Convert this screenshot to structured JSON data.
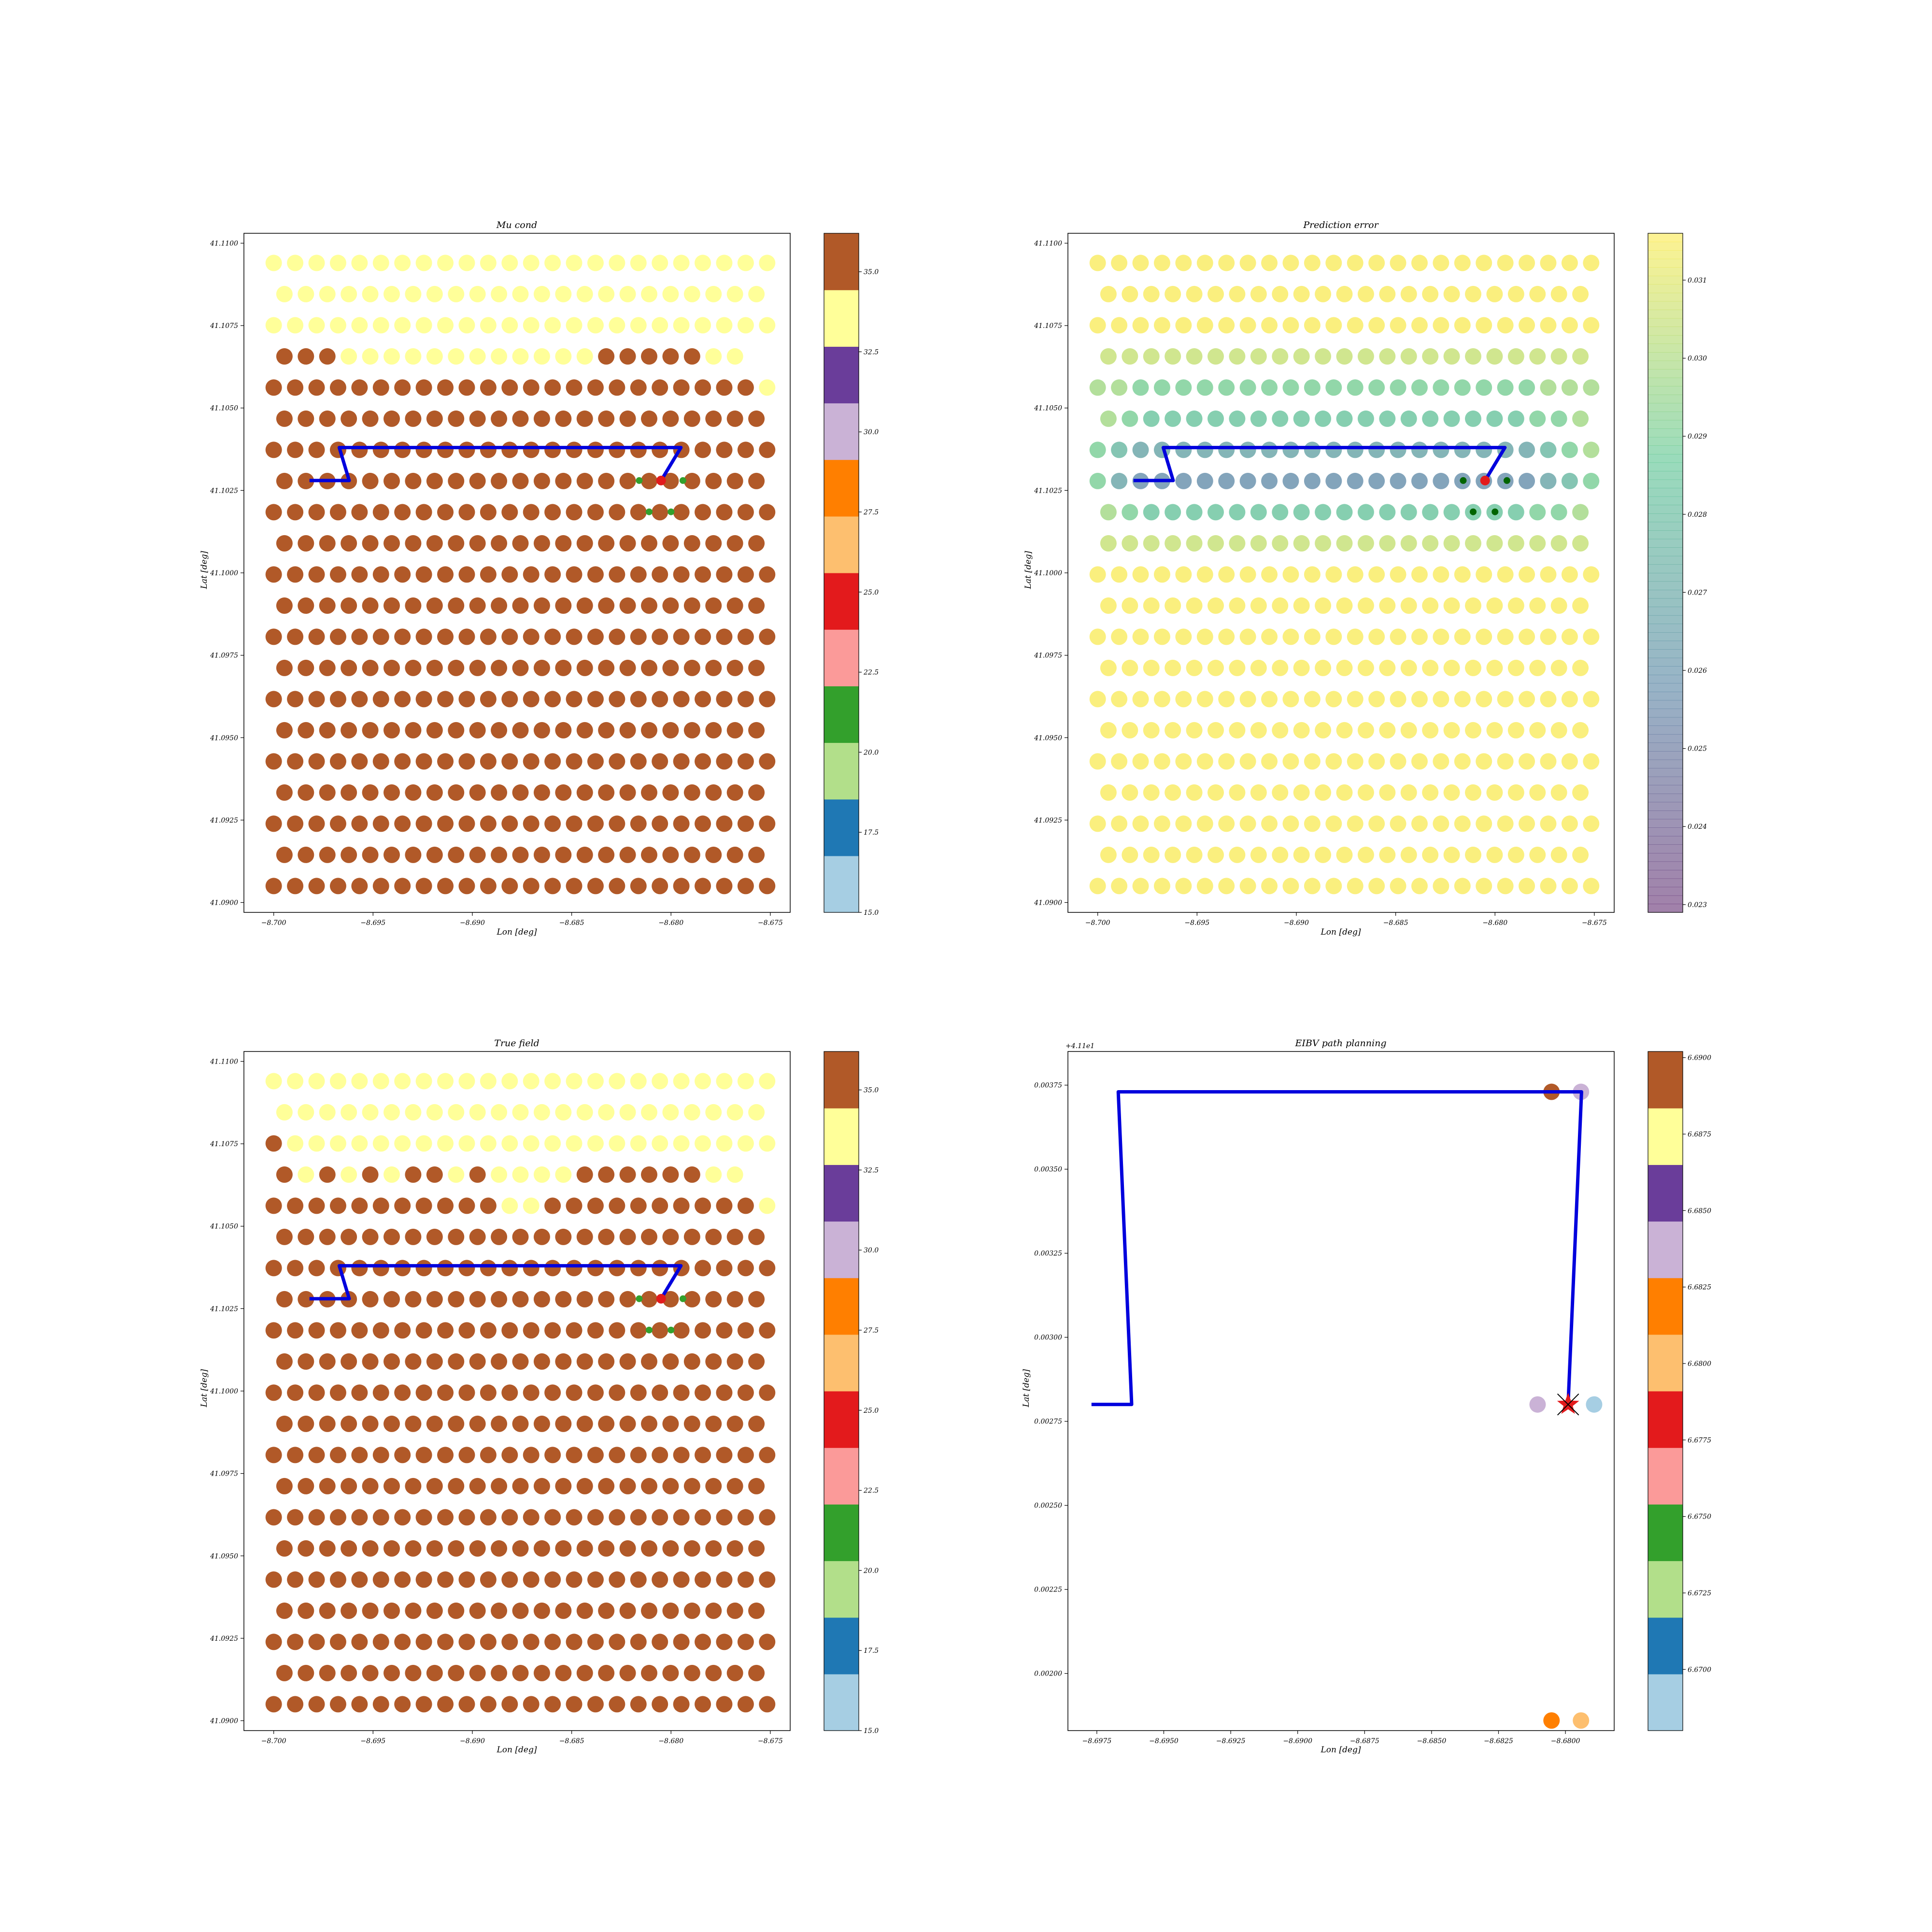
{
  "chart_data": [
    {
      "type": "scatter",
      "title": "Mu cond",
      "xlabel": "Lon [deg]",
      "ylabel": "Lat [deg]",
      "xlim": [
        -8.7015,
        -8.674
      ],
      "ylim": [
        41.0897,
        41.1103
      ],
      "x_ticks": [
        "−8.700",
        "−8.695",
        "−8.690",
        "−8.685",
        "−8.680",
        "−8.675"
      ],
      "y_ticks": [
        "41.0900",
        "41.0925",
        "41.0950",
        "41.0975",
        "41.1000",
        "41.1025",
        "41.1050",
        "41.1075",
        "41.1100"
      ],
      "grid": false,
      "field": {
        "lon_start": -8.7,
        "lon_step": 0.00108,
        "lat_start": 41.1094,
        "lat_step": -0.000945,
        "rows": 21,
        "cols": 24,
        "value_rows": [
          "HHHHHHHHHHHHHHHHHHHHHHHH",
          "HHHHHHHHHHHHHHHHHHHHHHH",
          "HHHHHHHHHHHHHHHHHHHHHHHH",
          "LLLHHHHHHHHHHHHLLLLLHH",
          "LLLLLLLLLLLLLLLLLLLLLLLH",
          "LLLLLLLLLLLLLLLLLLLLLLL",
          "LLLLLLLLLLLLLLLLLLLLLLLL",
          "LLLLLLLLLLLLLLLLLLLLLLL",
          "LLLLLLLLLLLLLLLLLLLLLLLL",
          "LLLLLLLLLLLLLLLLLLLLLLL",
          "LLLLLLLLLLLLLLLLLLLLLLLL",
          "LLLLLLLLLLLLLLLLLLLLLLL",
          "LLLLLLLLLLLLLLLLLLLLLLLL",
          "LLLLLLLLLLLLLLLLLLLLLLL",
          "LLLLLLLLLLLLLLLLLLLLLLLL",
          "LLLLLLLLLLLLLLLLLLLLLLL",
          "LLLLLLLLLLLLLLLLLLLLLLLL",
          "LLLLLLLLLLLLLLLLLLLLLLL",
          "LLLLLLLLLLLLLLLLLLLLLLLL",
          "LLLLLLLLLLLLLLLLLLLLLLL",
          "LLLLLLLLLLLLLLLLLLLLLLLL"
        ],
        "value_map": {
          "H": 34.0,
          "L": 36.0
        }
      },
      "path": [
        [
          -8.6982,
          41.1028
        ],
        [
          -8.6962,
          41.1028
        ],
        [
          -8.6967,
          41.1038
        ],
        [
          -8.6795,
          41.1038
        ],
        [
          -8.6805,
          41.1028
        ]
      ],
      "path_color": "#0000dd",
      "markers": [
        {
          "lon": -8.6805,
          "lat": 41.1028,
          "color": "#e31a1c",
          "size": "large"
        },
        {
          "lon": -8.6816,
          "lat": 41.1028,
          "color": "#33a02c",
          "size": "small"
        },
        {
          "lon": -8.6794,
          "lat": 41.1028,
          "color": "#33a02c",
          "size": "small"
        },
        {
          "lon": -8.6811,
          "lat": 41.10185,
          "color": "#33a02c",
          "size": "small"
        },
        {
          "lon": -8.68,
          "lat": 41.10185,
          "color": "#33a02c",
          "size": "small"
        }
      ],
      "colorbar": {
        "ticks": [
          "15.0",
          "17.5",
          "20.0",
          "22.5",
          "25.0",
          "27.5",
          "30.0",
          "32.5",
          "35.0"
        ],
        "range": [
          15.0,
          36.2
        ],
        "colors": [
          "#a6cee3",
          "#1f78b4",
          "#b2df8a",
          "#33a02c",
          "#fb9a99",
          "#e31a1c",
          "#fdbf6f",
          "#ff7f00",
          "#cab2d6",
          "#6a3d9a",
          "#ffff99",
          "#b15928"
        ]
      }
    },
    {
      "type": "scatter",
      "title": "Prediction error",
      "xlabel": "Lon [deg]",
      "ylabel": "Lat [deg]",
      "xlim": [
        -8.7015,
        -8.674
      ],
      "ylim": [
        41.0897,
        41.1103
      ],
      "x_ticks": [
        "−8.700",
        "−8.695",
        "−8.690",
        "−8.685",
        "−8.680",
        "−8.675"
      ],
      "y_ticks": [
        "41.0900",
        "41.0925",
        "41.0950",
        "41.0975",
        "41.1000",
        "41.1025",
        "41.1050",
        "41.1075",
        "41.1100"
      ],
      "grid": false,
      "field": {
        "lon_start": -8.7,
        "lon_step": 0.00108,
        "lat_start": 41.1094,
        "lat_step": -0.000945,
        "rows": 21,
        "cols": 24,
        "value_rows": [
          "aaaaaaaaaaaaaaaaaaaaaaaa",
          "aaaaaaaaaaaaaaaaaaaaaaa",
          "aaaaaaaaaaaaaaaaaaaaaaaa",
          "bbbbbbbbbbbbbbbbbbbbbbb",
          "ccdddddddddddddddddddccc",
          "cdeeeeeeeeeeeeeeeeeeddc",
          "dfgggggggggggggggggggfdc",
          "dghhhhhhhhhhhhhhhhhhhgfd",
          "cdeeeeeeeeeeeeeeeeeeddc",
          "bbbbbbbbbbbbbbbbbbbbbbb",
          "aaaaaaaaaaaaaaaaaaaaaaaa",
          "aaaaaaaaaaaaaaaaaaaaaaa",
          "aaaaaaaaaaaaaaaaaaaaaaaa",
          "aaaaaaaaaaaaaaaaaaaaaaa",
          "aaaaaaaaaaaaaaaaaaaaaaaa",
          "aaaaaaaaaaaaaaaaaaaaaaa",
          "aaaaaaaaaaaaaaaaaaaaaaaa",
          "aaaaaaaaaaaaaaaaaaaaaaa",
          "aaaaaaaaaaaaaaaaaaaaaaaa",
          "aaaaaaaaaaaaaaaaaaaaaaa",
          "aaaaaaaaaaaaaaaaaaaaaaaa"
        ],
        "value_map": {
          "a": 0.0315,
          "b": 0.0305,
          "c": 0.0298,
          "d": 0.029,
          "e": 0.0284,
          "f": 0.0278,
          "g": 0.0268,
          "h": 0.0258
        }
      },
      "path": [
        [
          -8.6982,
          41.1028
        ],
        [
          -8.6962,
          41.1028
        ],
        [
          -8.6967,
          41.1038
        ],
        [
          -8.6795,
          41.1038
        ],
        [
          -8.6805,
          41.1028
        ]
      ],
      "path_color": "#0000dd",
      "markers": [
        {
          "lon": -8.6805,
          "lat": 41.1028,
          "color": "#e31a1c",
          "size": "large"
        },
        {
          "lon": -8.6816,
          "lat": 41.1028,
          "color": "#006400",
          "size": "small"
        },
        {
          "lon": -8.6794,
          "lat": 41.1028,
          "color": "#006400",
          "size": "small"
        },
        {
          "lon": -8.6811,
          "lat": 41.10185,
          "color": "#006400",
          "size": "small"
        },
        {
          "lon": -8.68,
          "lat": 41.10185,
          "color": "#006400",
          "size": "small"
        }
      ],
      "colorbar": {
        "ticks": [
          "0.023",
          "0.024",
          "0.025",
          "0.026",
          "0.027",
          "0.028",
          "0.029",
          "0.030",
          "0.031"
        ],
        "range": [
          0.0229,
          0.0316
        ],
        "gradient": [
          "#440154",
          "#31688e",
          "#35b779",
          "#fde725"
        ],
        "opacity": 0.5
      }
    },
    {
      "type": "scatter",
      "title": "True field",
      "xlabel": "Lon [deg]",
      "ylabel": "Lat [deg]",
      "xlim": [
        -8.7015,
        -8.674
      ],
      "ylim": [
        41.0897,
        41.1103
      ],
      "x_ticks": [
        "−8.700",
        "−8.695",
        "−8.690",
        "−8.685",
        "−8.680",
        "−8.675"
      ],
      "y_ticks": [
        "41.0900",
        "41.0925",
        "41.0950",
        "41.0975",
        "41.1000",
        "41.1025",
        "41.1050",
        "41.1075",
        "41.1100"
      ],
      "grid": false,
      "field": {
        "lon_start": -8.7,
        "lon_step": 0.00108,
        "lat_start": 41.1094,
        "lat_step": -0.000945,
        "rows": 21,
        "cols": 24,
        "value_rows": [
          "HHHHHHHHHHHHHHHHHHHHHHHH",
          "HHHHHHHHHHHHHHHHHHHHHHH",
          "LHHHHHHHHHHHHHHHHHHHHHHH",
          "LHLHLHLLHLHHHHLLLLLLHH",
          "LLLLLLLLLLLHHLLLLLLLLLLH",
          "LLLLLLLLLLLLLLLLLLLLLLL",
          "LLLLLLLLLLLLLLLLLLLLLLLL",
          "LLLLLLLLLLLLLLLLLLLLLLL",
          "LLLLLLLLLLLLLLLLLLLLLLLL",
          "LLLLLLLLLLLLLLLLLLLLLLL",
          "LLLLLLLLLLLLLLLLLLLLLLLL",
          "LLLLLLLLLLLLLLLLLLLLLLL",
          "LLLLLLLLLLLLLLLLLLLLLLLL",
          "LLLLLLLLLLLLLLLLLLLLLLL",
          "LLLLLLLLLLLLLLLLLLLLLLLL",
          "LLLLLLLLLLLLLLLLLLLLLLL",
          "LLLLLLLLLLLLLLLLLLLLLLLL",
          "LLLLLLLLLLLLLLLLLLLLLLL",
          "LLLLLLLLLLLLLLLLLLLLLLLL",
          "LLLLLLLLLLLLLLLLLLLLLLL",
          "LLLLLLLLLLLLLLLLLLLLLLLL"
        ],
        "value_map": {
          "H": 34.0,
          "L": 36.0
        }
      },
      "path": [
        [
          -8.6982,
          41.1028
        ],
        [
          -8.6962,
          41.1028
        ],
        [
          -8.6967,
          41.1038
        ],
        [
          -8.6795,
          41.1038
        ],
        [
          -8.6805,
          41.1028
        ]
      ],
      "path_color": "#0000dd",
      "markers": [
        {
          "lon": -8.6805,
          "lat": 41.1028,
          "color": "#e31a1c",
          "size": "large"
        },
        {
          "lon": -8.6816,
          "lat": 41.1028,
          "color": "#33a02c",
          "size": "small"
        },
        {
          "lon": -8.6794,
          "lat": 41.1028,
          "color": "#33a02c",
          "size": "small"
        },
        {
          "lon": -8.6811,
          "lat": 41.10185,
          "color": "#33a02c",
          "size": "small"
        },
        {
          "lon": -8.68,
          "lat": 41.10185,
          "color": "#33a02c",
          "size": "small"
        }
      ],
      "colorbar": {
        "ticks": [
          "15.0",
          "17.5",
          "20.0",
          "22.5",
          "25.0",
          "27.5",
          "30.0",
          "32.5",
          "35.0"
        ],
        "range": [
          15.0,
          36.2
        ],
        "colors": [
          "#a6cee3",
          "#1f78b4",
          "#b2df8a",
          "#33a02c",
          "#fb9a99",
          "#e31a1c",
          "#fdbf6f",
          "#ff7f00",
          "#cab2d6",
          "#6a3d9a",
          "#ffff99",
          "#b15928"
        ]
      }
    },
    {
      "type": "scatter",
      "title": "EIBV path planning",
      "xlabel": "Lon [deg]",
      "ylabel": "Lat [deg]",
      "y_offset_label": "+4.11e1",
      "xlim": [
        -8.69858,
        -8.67818
      ],
      "ylim": [
        0.00183,
        0.00385
      ],
      "x_ticks_values": [
        -8.6975,
        -8.695,
        -8.6925,
        -8.69,
        -8.6875,
        -8.685,
        -8.6825,
        -8.68
      ],
      "x_ticks": [
        "−8.6975",
        "−8.6950",
        "−8.6925",
        "−8.6900",
        "−8.6875",
        "−8.6850",
        "−8.6825",
        "−8.6800"
      ],
      "y_ticks_values": [
        0.002,
        0.00225,
        0.0025,
        0.00275,
        0.003,
        0.00325,
        0.0035,
        0.00375
      ],
      "y_ticks": [
        "0.00200",
        "0.00225",
        "0.00250",
        "0.00275",
        "0.00300",
        "0.00325",
        "0.00350",
        "0.00375"
      ],
      "grid": false,
      "points": [
        {
          "lon": -8.68052,
          "lat": 0.00373,
          "color": "#b15928"
        },
        {
          "lon": -8.67942,
          "lat": 0.00373,
          "color": "#cab2d6"
        },
        {
          "lon": -8.68104,
          "lat": 0.0028,
          "color": "#cab2d6"
        },
        {
          "lon": -8.67893,
          "lat": 0.0028,
          "color": "#a6cee3"
        },
        {
          "lon": -8.68052,
          "lat": 0.00186,
          "color": "#ff7f00"
        },
        {
          "lon": -8.67942,
          "lat": 0.00186,
          "color": "#fdbf6f"
        }
      ],
      "path": [
        [
          -8.6977,
          0.0028
        ],
        [
          -8.6962,
          0.0028
        ],
        [
          -8.6967,
          0.00373
        ],
        [
          -8.6794,
          0.00373
        ],
        [
          -8.6799,
          0.0028
        ]
      ],
      "path_color": "#0000dd",
      "current_location": {
        "lon": -8.6799,
        "lat": 0.0028,
        "color": "#e31a1c",
        "marker": "star"
      },
      "colorbar": {
        "ticks": [
          "6.6700",
          "6.6725",
          "6.6750",
          "6.6775",
          "6.6800",
          "6.6825",
          "6.6850",
          "6.6875",
          "6.6900"
        ],
        "range": [
          6.668,
          6.6902
        ],
        "colors": [
          "#a6cee3",
          "#1f78b4",
          "#b2df8a",
          "#33a02c",
          "#fb9a99",
          "#e31a1c",
          "#fdbf6f",
          "#ff7f00",
          "#cab2d6",
          "#6a3d9a",
          "#ffff99",
          "#b15928"
        ]
      }
    }
  ]
}
